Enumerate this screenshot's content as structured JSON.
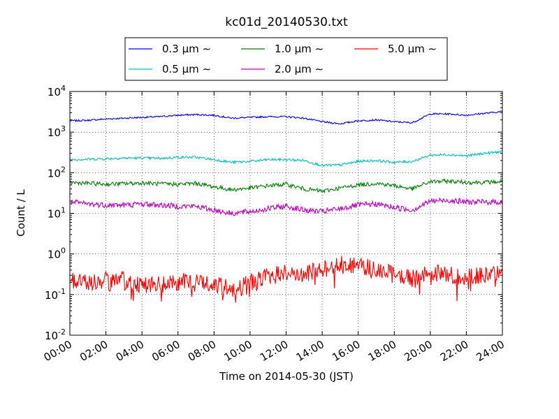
{
  "chart_data": {
    "type": "line",
    "title": "kc01d_20140530.txt",
    "xlabel": "Time on 2014-05-30 (JST)",
    "ylabel": "Count / L",
    "xlim": [
      "00:00",
      "24:00"
    ],
    "ylim": [
      0.01,
      10000
    ],
    "yscale": "log",
    "grid": true,
    "legend_position": "top-center, above plot",
    "xticks": [
      "00:00",
      "02:00",
      "04:00",
      "06:00",
      "08:00",
      "10:00",
      "12:00",
      "14:00",
      "16:00",
      "18:00",
      "20:00",
      "22:00",
      "24:00"
    ],
    "yticks": [
      {
        "value": 0.01,
        "base": "10",
        "exp": "-2"
      },
      {
        "value": 0.1,
        "base": "10",
        "exp": "-1"
      },
      {
        "value": 1,
        "base": "10",
        "exp": "0"
      },
      {
        "value": 10,
        "base": "10",
        "exp": "1"
      },
      {
        "value": 100,
        "base": "10",
        "exp": "2"
      },
      {
        "value": 1000,
        "base": "10",
        "exp": "3"
      },
      {
        "value": 10000,
        "base": "10",
        "exp": "4"
      }
    ],
    "x_hours": [
      0,
      1,
      2,
      3,
      4,
      5,
      6,
      7,
      8,
      9,
      10,
      11,
      12,
      13,
      14,
      15,
      16,
      17,
      18,
      19,
      20,
      21,
      22,
      23,
      24
    ],
    "series": [
      {
        "name": "0.3 μm ∼",
        "color": "#0000ff",
        "jitter": 0.02,
        "values": [
          1900,
          1950,
          2100,
          2200,
          2300,
          2400,
          2600,
          2700,
          2600,
          2200,
          2300,
          2400,
          2400,
          2200,
          1800,
          1600,
          1900,
          2000,
          1800,
          1700,
          2800,
          2800,
          2600,
          2900,
          3200
        ]
      },
      {
        "name": "0.5 μm ∼",
        "color": "#00bfbf",
        "jitter": 0.03,
        "values": [
          210,
          215,
          220,
          230,
          230,
          225,
          240,
          240,
          210,
          180,
          190,
          210,
          210,
          200,
          150,
          155,
          190,
          200,
          180,
          190,
          270,
          280,
          260,
          300,
          330
        ]
      },
      {
        "name": "1.0 μm ∼",
        "color": "#008000",
        "jitter": 0.05,
        "values": [
          58,
          55,
          52,
          54,
          56,
          53,
          52,
          55,
          45,
          38,
          42,
          48,
          52,
          40,
          35,
          42,
          50,
          55,
          48,
          40,
          60,
          62,
          58,
          58,
          60
        ]
      },
      {
        "name": "2.0 μm ∼",
        "color": "#bf00bf",
        "jitter": 0.07,
        "values": [
          19,
          17,
          16,
          16,
          17,
          16,
          15,
          15,
          12,
          10,
          11,
          13,
          15,
          12,
          11,
          13,
          16,
          17,
          14,
          12,
          20,
          21,
          19,
          19,
          19
        ]
      },
      {
        "name": "5.0 μm ∼",
        "color": "#ff0000",
        "jitter": 0.22,
        "values": [
          0.23,
          0.2,
          0.22,
          0.22,
          0.18,
          0.17,
          0.2,
          0.22,
          0.17,
          0.14,
          0.2,
          0.28,
          0.35,
          0.3,
          0.45,
          0.6,
          0.5,
          0.45,
          0.3,
          0.25,
          0.35,
          0.3,
          0.28,
          0.3,
          0.32
        ]
      }
    ]
  }
}
